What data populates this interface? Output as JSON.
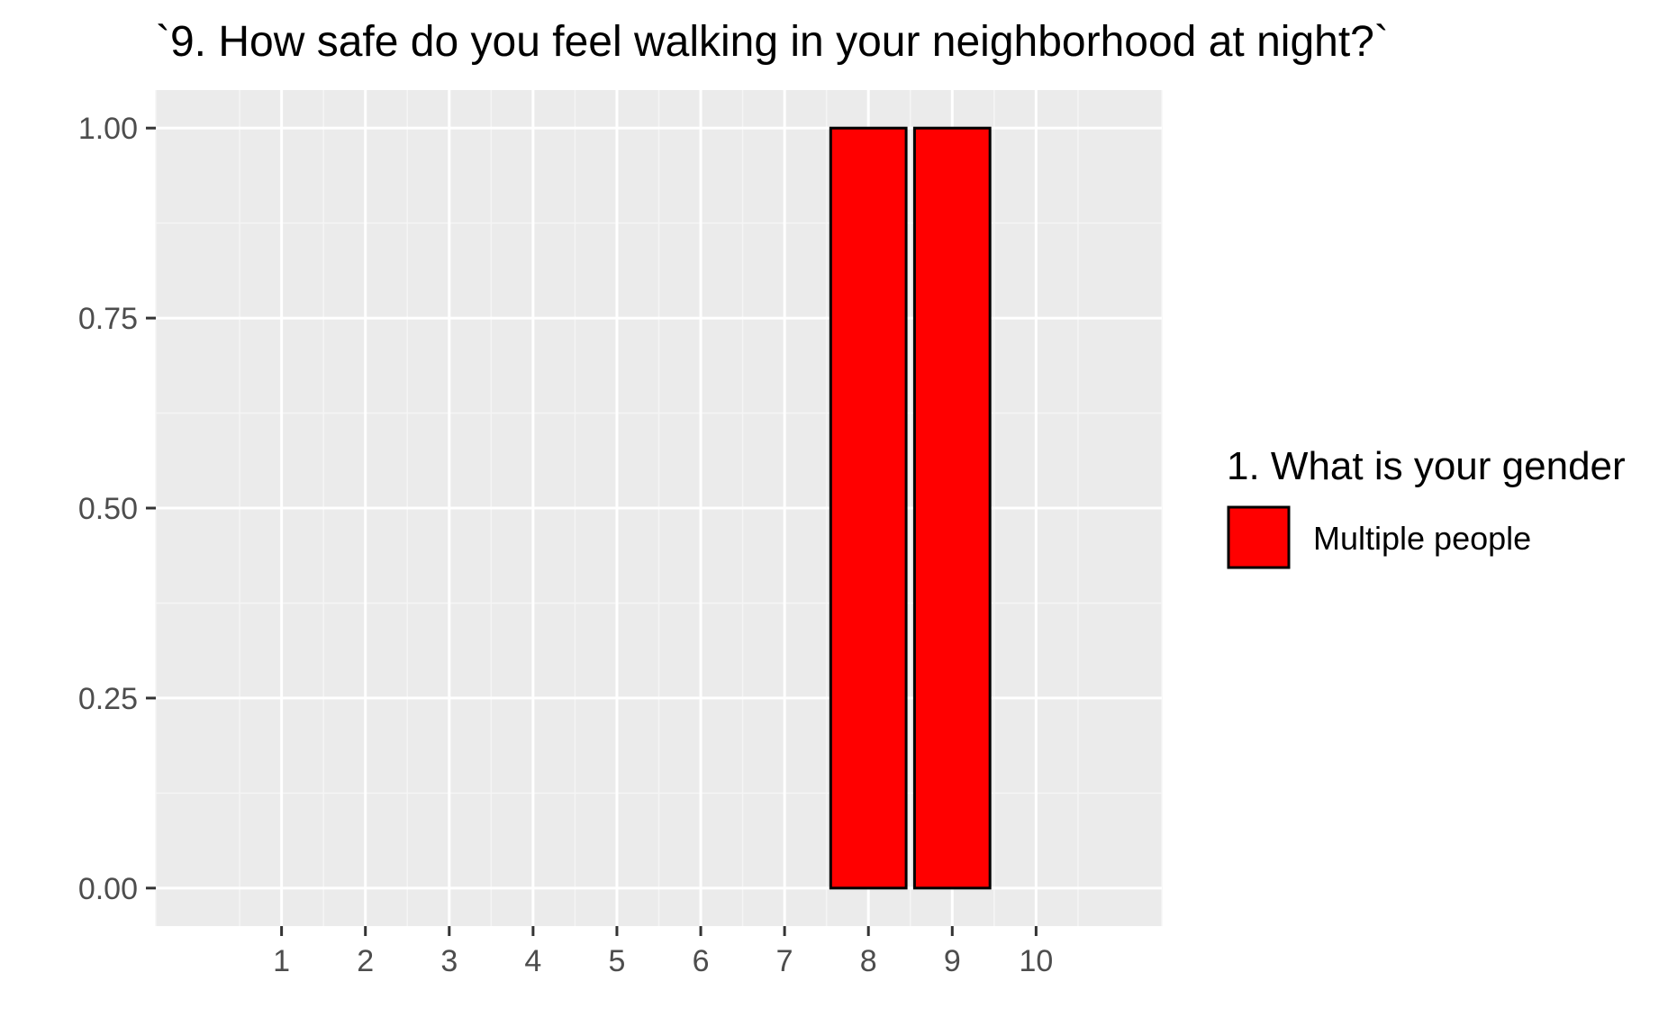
{
  "chart_data": {
    "type": "bar",
    "title": "`9. How safe do you feel walking in your neighborhood at night?`",
    "xlabel": "",
    "ylabel": "",
    "categories": [
      "1",
      "2",
      "3",
      "4",
      "5",
      "6",
      "7",
      "8",
      "9",
      "10"
    ],
    "series": [
      {
        "name": "Multiple people",
        "values": [
          0,
          0,
          0,
          0,
          0,
          0,
          0,
          1,
          1,
          0
        ]
      }
    ],
    "xlim": [
      -0.5,
      11.5
    ],
    "ylim": [
      -0.05,
      1.05
    ],
    "y_ticks": [
      "0.00",
      "0.25",
      "0.50",
      "0.75",
      "1.00"
    ],
    "y_tick_values": [
      0,
      0.25,
      0.5,
      0.75,
      1
    ],
    "grid": true,
    "legend": {
      "title": "1. What is your gender",
      "position": "right"
    },
    "colors": {
      "bar_fill": "#ff0000",
      "bar_outline": "#000000",
      "panel_background": "#ebebeb",
      "grid_major": "#ffffff",
      "grid_minor": "#f5f5f5"
    }
  }
}
